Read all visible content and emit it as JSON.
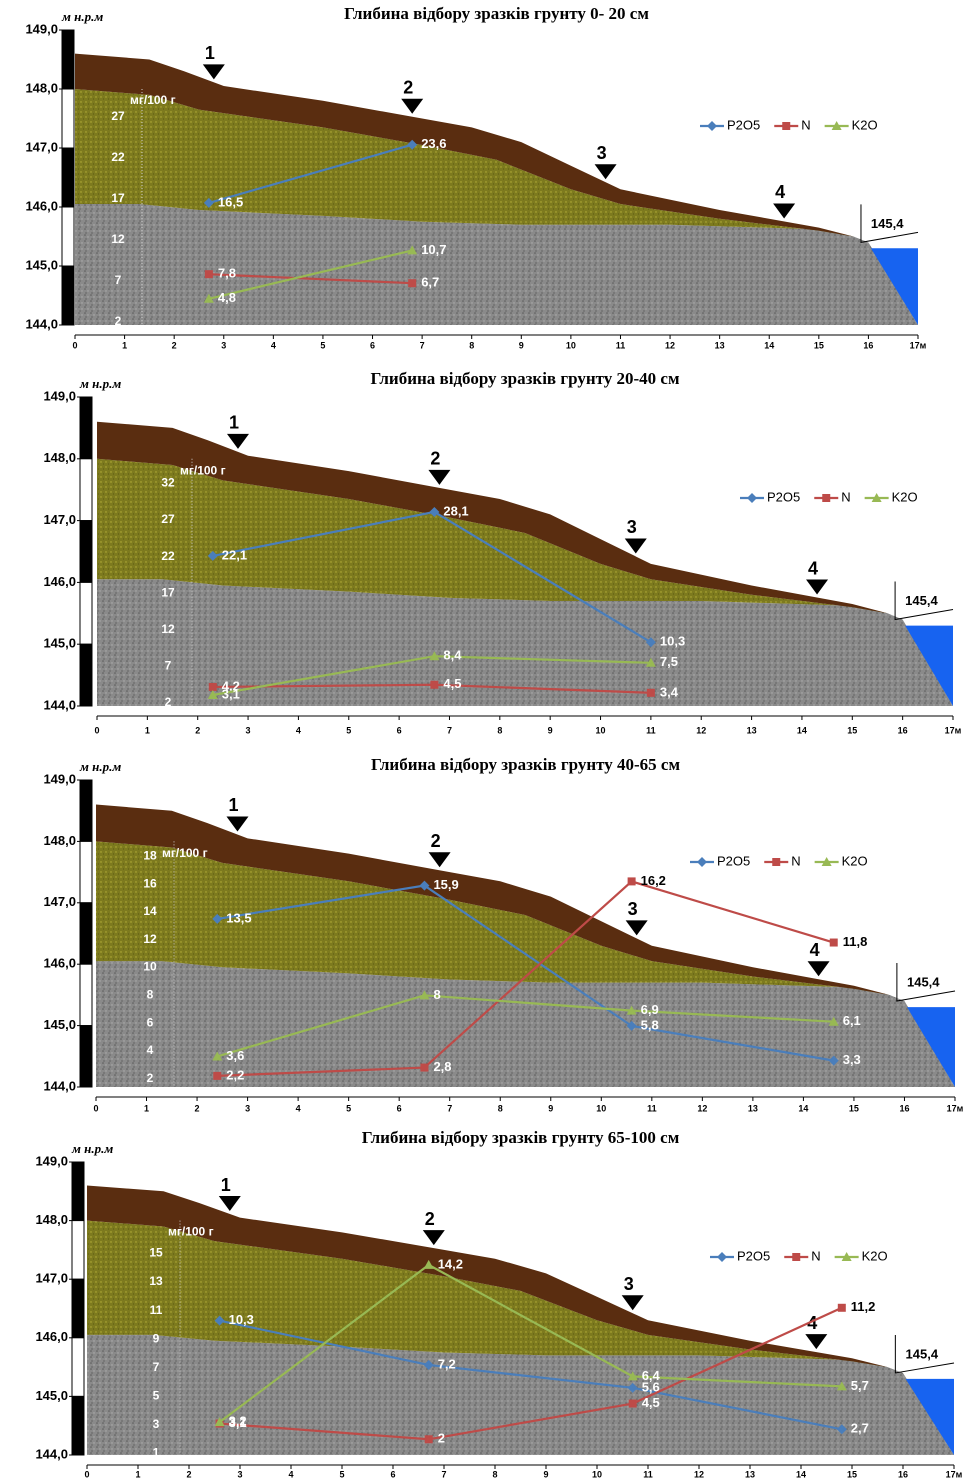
{
  "chart_data": [
    {
      "type": "line",
      "title": "Глибина відбору зразків грунту 0- 20 см",
      "ylabel": "м н.р.м",
      "y2label": "мг/100 г",
      "x": [
        2.7,
        6.8
      ],
      "series": [
        {
          "name": "P2O5",
          "color": "#4a7ebb",
          "marker": "diamond",
          "axis": "y2",
          "values": [
            16.5,
            23.6
          ],
          "value_labels": [
            "16,5",
            "23,6"
          ]
        },
        {
          "name": "N",
          "color": "#be4b48",
          "marker": "square",
          "axis": "y2",
          "values": [
            7.8,
            6.7
          ],
          "value_labels": [
            "7,8",
            "6,7"
          ]
        },
        {
          "name": "K2O",
          "color": "#98b954",
          "marker": "triangle",
          "axis": "y2",
          "values": [
            4.8,
            10.7
          ],
          "value_labels": [
            "4,8",
            "10,7"
          ]
        }
      ],
      "xlim": [
        0,
        17
      ],
      "xticks": [
        0,
        1,
        2,
        3,
        4,
        5,
        6,
        7,
        8,
        9,
        10,
        11,
        12,
        13,
        14,
        15,
        16,
        {
          "value": 17,
          "label": "17м"
        }
      ],
      "ylim": [
        144,
        149
      ],
      "yticks": [
        {
          "value": 144,
          "label": "144,0"
        },
        {
          "value": 145,
          "label": "145,0"
        },
        {
          "value": 146,
          "label": "146,0"
        },
        {
          "value": 147,
          "label": "147,0"
        },
        {
          "value": 148,
          "label": "148,0"
        },
        {
          "value": 149,
          "label": "149,0"
        }
      ],
      "y2lim": [
        1.6,
        37.6
      ],
      "y2ticks": [
        2,
        7,
        12,
        17,
        22,
        27
      ],
      "legend": "upper right",
      "markers": [
        "1",
        "2",
        "3",
        "4"
      ],
      "water_level": {
        "value": 145.4,
        "label": "145,4"
      }
    },
    {
      "type": "line",
      "title": "Глибина відбору зразків грунту 20-40 см",
      "ylabel": "м н.р.м",
      "y2label": "мг/100 г",
      "x": [
        2.3,
        6.7,
        11
      ],
      "series": [
        {
          "name": "P2O5",
          "color": "#4a7ebb",
          "marker": "diamond",
          "axis": "y2",
          "values": [
            22.1,
            28.1,
            10.3
          ],
          "value_labels": [
            "22,1",
            "28,1",
            "10,3"
          ]
        },
        {
          "name": "N",
          "color": "#be4b48",
          "marker": "square",
          "axis": "y2",
          "values": [
            4.2,
            4.5,
            3.4
          ],
          "value_labels": [
            "4,2",
            "4,5",
            "3,4"
          ]
        },
        {
          "name": "K2O",
          "color": "#98b954",
          "marker": "triangle",
          "axis": "y2",
          "values": [
            3.1,
            8.4,
            7.5
          ],
          "value_labels": [
            "3,1",
            "8,4",
            "7,5"
          ]
        }
      ],
      "xlim": [
        0,
        17
      ],
      "xticks": [
        0,
        1,
        2,
        3,
        4,
        5,
        6,
        7,
        8,
        9,
        10,
        11,
        12,
        13,
        14,
        15,
        16,
        {
          "value": 17,
          "label": "17м"
        }
      ],
      "ylim": [
        144,
        149
      ],
      "yticks": [
        {
          "value": 144,
          "label": "144,0"
        },
        {
          "value": 145,
          "label": "145,0"
        },
        {
          "value": 146,
          "label": "146,0"
        },
        {
          "value": 147,
          "label": "147,0"
        },
        {
          "value": 148,
          "label": "148,0"
        },
        {
          "value": 149,
          "label": "149,0"
        }
      ],
      "y2lim": [
        1.6,
        43.8
      ],
      "y2ticks": [
        2,
        7,
        12,
        17,
        22,
        27,
        32
      ],
      "legend": "upper right",
      "markers": [
        "1",
        "2",
        "3",
        "4"
      ],
      "water_level": {
        "value": 145.4,
        "label": "145,4"
      }
    },
    {
      "type": "line",
      "title": "Глибина відбору зразків грунту 40-65 см",
      "ylabel": "м н.р.м",
      "y2label": "мг/100 г",
      "x": [
        2.4,
        6.5,
        10.6,
        14.6
      ],
      "series": [
        {
          "name": "P2O5",
          "color": "#4a7ebb",
          "marker": "diamond",
          "axis": "y2",
          "values": [
            13.5,
            15.9,
            5.8,
            3.3
          ],
          "value_labels": [
            "13,5",
            "15,9",
            "5,8",
            "3,3"
          ]
        },
        {
          "name": "N",
          "color": "#be4b48",
          "marker": "square",
          "axis": "y2",
          "values": [
            2.2,
            2.8,
            16.2,
            11.8
          ],
          "value_labels": [
            "2,2",
            "2,8",
            "16,2",
            "11,8"
          ]
        },
        {
          "name": "K2O",
          "color": "#98b954",
          "marker": "triangle",
          "axis": "y2",
          "values": [
            3.6,
            8,
            6.9,
            6.1
          ],
          "value_labels": [
            "3,6",
            "8",
            "6,9",
            "6,1"
          ]
        }
      ],
      "xlim": [
        0,
        17
      ],
      "xticks": [
        0,
        1,
        2,
        3,
        4,
        5,
        6,
        7,
        8,
        9,
        10,
        11,
        12,
        13,
        14,
        15,
        16,
        {
          "value": 17,
          "label": "17м"
        }
      ],
      "ylim": [
        144,
        149
      ],
      "yticks": [
        {
          "value": 144,
          "label": "144,0"
        },
        {
          "value": 145,
          "label": "145,0"
        },
        {
          "value": 146,
          "label": "146,0"
        },
        {
          "value": 147,
          "label": "147,0"
        },
        {
          "value": 148,
          "label": "148,0"
        },
        {
          "value": 149,
          "label": "149,0"
        }
      ],
      "y2lim": [
        1.4,
        23.5
      ],
      "y2ticks": [
        2,
        4,
        6,
        8,
        10,
        12,
        14,
        16,
        18
      ],
      "legend": "upper right",
      "markers": [
        "1",
        "2",
        "3",
        "4"
      ],
      "water_level": {
        "value": 145.4,
        "label": "145,4"
      }
    },
    {
      "type": "line",
      "title": "Глибина відбору зразків грунту 65-100 см",
      "ylabel": "м н.р.м",
      "y2label": "мг/100 г",
      "x": [
        2.6,
        6.7,
        10.7,
        14.8
      ],
      "series": [
        {
          "name": "P2O5",
          "color": "#4a7ebb",
          "marker": "diamond",
          "axis": "y2",
          "values": [
            10.3,
            7.2,
            5.6,
            2.7
          ],
          "value_labels": [
            "10,3",
            "7,2",
            "5,6",
            "2,7"
          ]
        },
        {
          "name": "N",
          "color": "#be4b48",
          "marker": "square",
          "axis": "y2",
          "values": [
            3.1,
            2,
            4.5,
            11.2
          ],
          "value_labels": [
            "3,1",
            "2",
            "4,5",
            "11,2"
          ]
        },
        {
          "name": "K2O",
          "color": "#98b954",
          "marker": "triangle",
          "axis": "y2",
          "values": [
            3.2,
            14.2,
            6.4,
            5.7
          ],
          "value_labels": [
            "3,2",
            "14,2",
            "6,4",
            "5,7"
          ]
        }
      ],
      "xlim": [
        0,
        17
      ],
      "xticks": [
        0,
        1,
        2,
        3,
        4,
        5,
        6,
        7,
        8,
        9,
        10,
        11,
        12,
        13,
        14,
        15,
        16,
        {
          "value": 17,
          "label": "17м"
        }
      ],
      "ylim": [
        144,
        149
      ],
      "yticks": [
        {
          "value": 144,
          "label": "144,0"
        },
        {
          "value": 145,
          "label": "145,0"
        },
        {
          "value": 146,
          "label": "146,0"
        },
        {
          "value": 147,
          "label": "147,0"
        },
        {
          "value": 148,
          "label": "148,0"
        },
        {
          "value": 149,
          "label": "149,0"
        }
      ],
      "y2lim": [
        0.9,
        21.4
      ],
      "y2ticks": [
        1,
        3,
        5,
        7,
        9,
        11,
        13,
        15
      ],
      "legend": "upper right",
      "markers": [
        "1",
        "2",
        "3",
        "4"
      ],
      "water_level": {
        "value": 145.4,
        "label": "145,4"
      }
    }
  ]
}
